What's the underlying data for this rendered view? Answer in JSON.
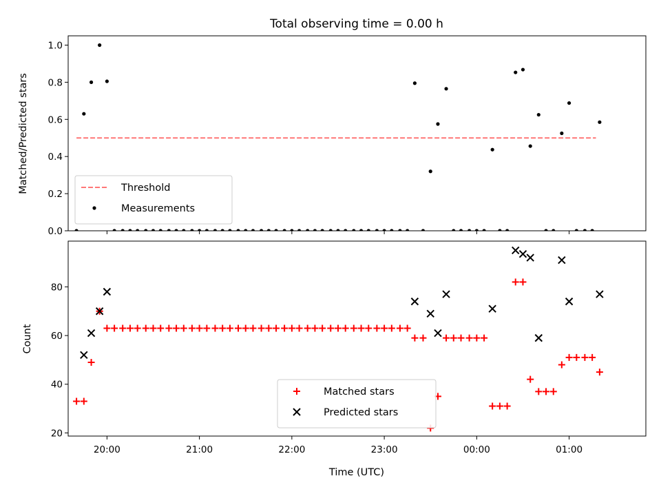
{
  "chart_data": {
    "type": "scatter",
    "title": "Total observing time = 0.00 h",
    "xlabel": "Time (UTC)",
    "x_axis_type": "time",
    "x_unit": "hours since 19:00 UTC",
    "xlim": [
      0.58,
      6.83
    ],
    "x_ticks": [
      {
        "x": 1,
        "label": "20:00"
      },
      {
        "x": 2,
        "label": "21:00"
      },
      {
        "x": 3,
        "label": "22:00"
      },
      {
        "x": 4,
        "label": "23:00"
      },
      {
        "x": 5,
        "label": "00:00"
      },
      {
        "x": 6,
        "label": "01:00"
      }
    ],
    "panels": [
      {
        "id": "ratio",
        "ylabel": "Matched/Predicted stars",
        "ylim": [
          0.0,
          1.05
        ],
        "y_ticks": [
          "0.0",
          "0.2",
          "0.4",
          "0.6",
          "0.8",
          "1.0"
        ],
        "legend_position": "lower-left",
        "series": [
          {
            "name": "Threshold",
            "kind": "line",
            "style": "dashed",
            "color": "#ff7777",
            "x": [
              0.67,
              6.29
            ],
            "y": [
              0.5,
              0.5
            ]
          },
          {
            "name": "Measurements",
            "kind": "scatter",
            "marker": "dot",
            "color": "#000000",
            "points": [
              [
                0.67,
                0.0
              ],
              [
                0.75,
                0.63
              ],
              [
                0.83,
                0.8
              ],
              [
                0.92,
                1.0
              ],
              [
                1.0,
                0.805
              ],
              [
                1.08,
                0.0
              ],
              [
                1.17,
                0.0
              ],
              [
                1.25,
                0.0
              ],
              [
                1.33,
                0.0
              ],
              [
                1.42,
                0.0
              ],
              [
                1.5,
                0.0
              ],
              [
                1.58,
                0.0
              ],
              [
                1.67,
                0.0
              ],
              [
                1.75,
                0.0
              ],
              [
                1.83,
                0.0
              ],
              [
                1.92,
                0.0
              ],
              [
                2.0,
                0.0
              ],
              [
                2.08,
                0.0
              ],
              [
                2.17,
                0.0
              ],
              [
                2.25,
                0.0
              ],
              [
                2.33,
                0.0
              ],
              [
                2.42,
                0.0
              ],
              [
                2.5,
                0.0
              ],
              [
                2.58,
                0.0
              ],
              [
                2.67,
                0.0
              ],
              [
                2.75,
                0.0
              ],
              [
                2.83,
                0.0
              ],
              [
                2.92,
                0.0
              ],
              [
                3.0,
                0.0
              ],
              [
                3.08,
                0.0
              ],
              [
                3.17,
                0.0
              ],
              [
                3.25,
                0.0
              ],
              [
                3.33,
                0.0
              ],
              [
                3.42,
                0.0
              ],
              [
                3.5,
                0.0
              ],
              [
                3.58,
                0.0
              ],
              [
                3.67,
                0.0
              ],
              [
                3.75,
                0.0
              ],
              [
                3.83,
                0.0
              ],
              [
                3.92,
                0.0
              ],
              [
                4.0,
                0.0
              ],
              [
                4.08,
                0.0
              ],
              [
                4.17,
                0.0
              ],
              [
                4.25,
                0.0
              ],
              [
                4.33,
                0.795
              ],
              [
                4.42,
                0.0
              ],
              [
                4.5,
                0.32
              ],
              [
                4.58,
                0.575
              ],
              [
                4.67,
                0.765
              ],
              [
                4.75,
                0.0
              ],
              [
                4.83,
                0.0
              ],
              [
                4.92,
                0.0
              ],
              [
                5.0,
                0.0
              ],
              [
                5.08,
                0.0
              ],
              [
                5.17,
                0.437
              ],
              [
                5.25,
                0.0
              ],
              [
                5.33,
                0.0
              ],
              [
                5.42,
                0.853
              ],
              [
                5.5,
                0.868
              ],
              [
                5.58,
                0.456
              ],
              [
                5.67,
                0.625
              ],
              [
                5.75,
                0.0
              ],
              [
                5.83,
                0.0
              ],
              [
                5.92,
                0.525
              ],
              [
                6.0,
                0.688
              ],
              [
                6.08,
                0.0
              ],
              [
                6.17,
                0.0
              ],
              [
                6.25,
                0.0
              ],
              [
                6.33,
                0.585
              ]
            ]
          }
        ]
      },
      {
        "id": "counts",
        "ylabel": "Count",
        "ylim": [
          18.7,
          98.8
        ],
        "y_ticks": [
          "20",
          "40",
          "60",
          "80"
        ],
        "legend_position": "lower-center",
        "series": [
          {
            "name": "Matched stars",
            "kind": "scatter",
            "marker": "plus",
            "color": "#ff0000",
            "points": [
              [
                0.67,
                33
              ],
              [
                0.75,
                33
              ],
              [
                0.83,
                49
              ],
              [
                0.92,
                70
              ],
              [
                1.0,
                63
              ],
              [
                1.08,
                63
              ],
              [
                1.17,
                63
              ],
              [
                1.25,
                63
              ],
              [
                1.33,
                63
              ],
              [
                1.42,
                63
              ],
              [
                1.5,
                63
              ],
              [
                1.58,
                63
              ],
              [
                1.67,
                63
              ],
              [
                1.75,
                63
              ],
              [
                1.83,
                63
              ],
              [
                1.92,
                63
              ],
              [
                2.0,
                63
              ],
              [
                2.08,
                63
              ],
              [
                2.17,
                63
              ],
              [
                2.25,
                63
              ],
              [
                2.33,
                63
              ],
              [
                2.42,
                63
              ],
              [
                2.5,
                63
              ],
              [
                2.58,
                63
              ],
              [
                2.67,
                63
              ],
              [
                2.75,
                63
              ],
              [
                2.83,
                63
              ],
              [
                2.92,
                63
              ],
              [
                3.0,
                63
              ],
              [
                3.08,
                63
              ],
              [
                3.17,
                63
              ],
              [
                3.25,
                63
              ],
              [
                3.33,
                63
              ],
              [
                3.42,
                63
              ],
              [
                3.5,
                63
              ],
              [
                3.58,
                63
              ],
              [
                3.67,
                63
              ],
              [
                3.75,
                63
              ],
              [
                3.83,
                63
              ],
              [
                3.92,
                63
              ],
              [
                4.0,
                63
              ],
              [
                4.08,
                63
              ],
              [
                4.17,
                63
              ],
              [
                4.25,
                63
              ],
              [
                4.33,
                59
              ],
              [
                4.42,
                59
              ],
              [
                4.5,
                22
              ],
              [
                4.58,
                35
              ],
              [
                4.67,
                59
              ],
              [
                4.75,
                59
              ],
              [
                4.83,
                59
              ],
              [
                4.92,
                59
              ],
              [
                5.0,
                59
              ],
              [
                5.08,
                59
              ],
              [
                5.17,
                31
              ],
              [
                5.25,
                31
              ],
              [
                5.33,
                31
              ],
              [
                5.42,
                82
              ],
              [
                5.5,
                82
              ],
              [
                5.58,
                42
              ],
              [
                5.67,
                37
              ],
              [
                5.75,
                37
              ],
              [
                5.83,
                37
              ],
              [
                5.92,
                48
              ],
              [
                6.0,
                51
              ],
              [
                6.08,
                51
              ],
              [
                6.17,
                51
              ],
              [
                6.25,
                51
              ],
              [
                6.33,
                45
              ]
            ]
          },
          {
            "name": "Predicted stars",
            "kind": "scatter",
            "marker": "x",
            "color": "#000000",
            "points": [
              [
                0.75,
                52
              ],
              [
                0.83,
                61
              ],
              [
                0.92,
                70
              ],
              [
                1.0,
                78
              ],
              [
                4.33,
                74
              ],
              [
                4.5,
                69
              ],
              [
                4.58,
                61
              ],
              [
                4.67,
                77
              ],
              [
                5.17,
                71
              ],
              [
                5.42,
                95
              ],
              [
                5.5,
                93.5
              ],
              [
                5.58,
                92
              ],
              [
                5.67,
                59
              ],
              [
                5.92,
                91
              ],
              [
                6.0,
                74
              ],
              [
                6.33,
                77
              ]
            ]
          }
        ]
      }
    ]
  }
}
